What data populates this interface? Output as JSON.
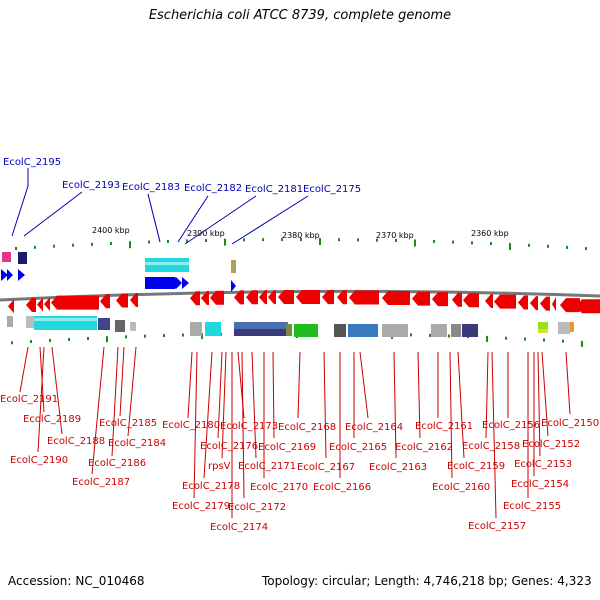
{
  "title": "Escherichia coli ATCC 8739, complete genome",
  "footer": {
    "accession_label": "Accession:",
    "accession": "NC_010468",
    "topology_text": "Topology: circular; Length: 4,746,218 bp; Genes: 4,323"
  },
  "scale_ticks": [
    "2400 kbp",
    "2390 kbp",
    "2380 kbp",
    "2370 kbp",
    "2360 kbp"
  ],
  "colors": {
    "forward_label": "#0000bb",
    "reverse_label": "#cc0000",
    "forward_gene": "#0000ee",
    "reverse_gene": "#ee0000",
    "tick_green": "#1a8a1a",
    "backbone": "#777777"
  },
  "top_labels": [
    "EcolC_2195",
    "EcolC_2193",
    "EcolC_2183",
    "EcolC_2182",
    "EcolC_2181",
    "EcolC_2175"
  ],
  "bottom_labels": [
    "EcolC_2191",
    "EcolC_2189",
    "EcolC_2190",
    "EcolC_2188",
    "EcolC_2187",
    "EcolC_2186",
    "EcolC_2185",
    "EcolC_2184",
    "EcolC_2180",
    "EcolC_2179",
    "EcolC_2178",
    "EcolC_2176",
    "rpsV",
    "EcolC_2174",
    "EcolC_2173",
    "EcolC_2172",
    "EcolC_2171",
    "EcolC_2170",
    "EcolC_2169",
    "EcolC_2168",
    "EcolC_2167",
    "EcolC_2166",
    "EcolC_2165",
    "EcolC_2164",
    "EcolC_2163",
    "EcolC_2162",
    "EcolC_2161",
    "EcolC_2160",
    "EcolC_2159",
    "EcolC_2158",
    "EcolC_2157",
    "EcolC_2156",
    "EcolC_2155",
    "EcolC_2154",
    "EcolC_2153",
    "EcolC_2152",
    "EcolC_2150"
  ]
}
